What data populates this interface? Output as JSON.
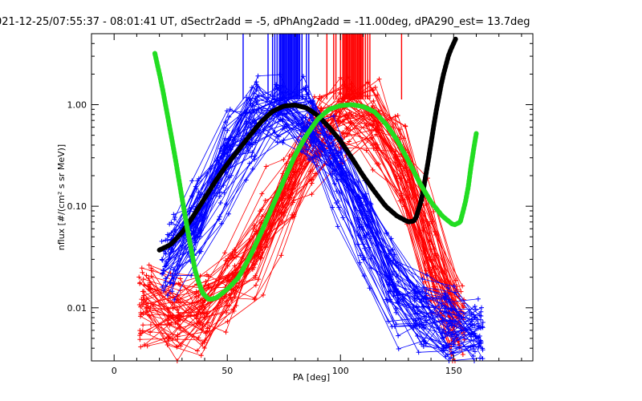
{
  "chart_data": {
    "type": "line",
    "title": "021-12-25/07:55:37 - 08:01:41 UT, dSectr2add = -5, dPhAng2add = -11.00deg, dPA290_est=  13.7deg",
    "xlabel": "PA [deg]",
    "ylabel": "nflux [#/(cm² s sr MeV)]",
    "xlim": [
      -10,
      185
    ],
    "ylim": [
      0.003,
      5.0
    ],
    "yscale": "log",
    "grid": false,
    "x_ticks": [
      {
        "value": 0,
        "label": "0"
      },
      {
        "value": 50,
        "label": "50"
      },
      {
        "value": 100,
        "label": "100"
      },
      {
        "value": 150,
        "label": "150"
      }
    ],
    "y_ticks": [
      {
        "value": 0.01,
        "label": "0.01"
      },
      {
        "value": 0.1,
        "label": "0.10"
      },
      {
        "value": 1.0,
        "label": "1.00"
      }
    ],
    "colors": {
      "blue_series": "#0000ff",
      "red_series": "#ff0000",
      "black_fit": "#000000",
      "green_fit": "#22dd22"
    },
    "vertical_markers": {
      "blue": [
        57,
        68,
        70,
        71,
        72,
        73,
        73.5,
        74,
        74.5,
        75,
        75.5,
        76,
        76.5,
        77,
        77.5,
        78,
        78.5,
        79,
        79.5,
        80,
        80.5,
        81,
        81.5,
        82,
        83,
        85,
        86
      ],
      "red": [
        94,
        97,
        98,
        100,
        101,
        101.5,
        102,
        102.5,
        103,
        103.5,
        104,
        104.5,
        105,
        105.5,
        106,
        106.5,
        107,
        107.5,
        108,
        108.5,
        109,
        109.5,
        110,
        111,
        112,
        113,
        127
      ]
    },
    "series": [
      {
        "name": "black fit",
        "x": [
          20,
          25,
          30,
          35,
          40,
          45,
          50,
          55,
          60,
          65,
          70,
          75,
          80,
          85,
          90,
          95,
          100,
          105,
          110,
          115,
          120,
          125,
          130,
          133,
          136,
          139,
          142,
          145,
          148,
          151
        ],
        "values": [
          0.037,
          0.042,
          0.055,
          0.08,
          0.12,
          0.18,
          0.26,
          0.36,
          0.5,
          0.68,
          0.86,
          0.97,
          0.99,
          0.93,
          0.78,
          0.6,
          0.44,
          0.3,
          0.2,
          0.14,
          0.1,
          0.08,
          0.07,
          0.072,
          0.12,
          0.3,
          0.8,
          1.8,
          3.2,
          4.5
        ]
      },
      {
        "name": "green fit",
        "x": [
          18,
          21,
          24,
          27,
          30,
          33,
          36,
          39,
          42,
          45,
          48,
          51,
          55,
          60,
          65,
          70,
          75,
          80,
          85,
          90,
          95,
          100,
          105,
          110,
          115,
          120,
          125,
          130,
          135,
          140,
          145,
          150,
          153,
          156,
          158,
          160
        ],
        "values": [
          3.2,
          1.6,
          0.7,
          0.3,
          0.12,
          0.05,
          0.022,
          0.014,
          0.012,
          0.0125,
          0.014,
          0.016,
          0.02,
          0.032,
          0.055,
          0.1,
          0.18,
          0.32,
          0.5,
          0.72,
          0.9,
          0.98,
          1.0,
          0.96,
          0.85,
          0.65,
          0.45,
          0.28,
          0.17,
          0.11,
          0.08,
          0.065,
          0.07,
          0.13,
          0.28,
          0.52
        ]
      },
      {
        "name": "blue envelope",
        "x": [
          25,
          30,
          35,
          40,
          45,
          50,
          55,
          60,
          65,
          70,
          75,
          80,
          85,
          90,
          95,
          100,
          105,
          110,
          115,
          120,
          125,
          130,
          135,
          140,
          145,
          150,
          155,
          160
        ],
        "values": [
          0.03,
          0.04,
          0.06,
          0.1,
          0.18,
          0.3,
          0.5,
          0.72,
          0.9,
          1.0,
          0.95,
          0.88,
          0.75,
          0.55,
          0.38,
          0.24,
          0.14,
          0.08,
          0.045,
          0.025,
          0.016,
          0.011,
          0.009,
          0.008,
          0.008,
          0.007,
          0.006,
          0.006
        ]
      },
      {
        "name": "red envelope",
        "x": [
          15,
          20,
          25,
          30,
          35,
          40,
          45,
          50,
          55,
          60,
          65,
          70,
          75,
          80,
          85,
          90,
          95,
          100,
          105,
          110,
          115,
          120,
          125,
          130,
          135,
          140,
          145,
          150
        ],
        "values": [
          0.012,
          0.01,
          0.009,
          0.009,
          0.009,
          0.01,
          0.012,
          0.015,
          0.02,
          0.03,
          0.05,
          0.08,
          0.13,
          0.22,
          0.36,
          0.55,
          0.75,
          0.88,
          0.92,
          0.88,
          0.75,
          0.55,
          0.34,
          0.18,
          0.08,
          0.035,
          0.015,
          0.007
        ]
      }
    ]
  }
}
